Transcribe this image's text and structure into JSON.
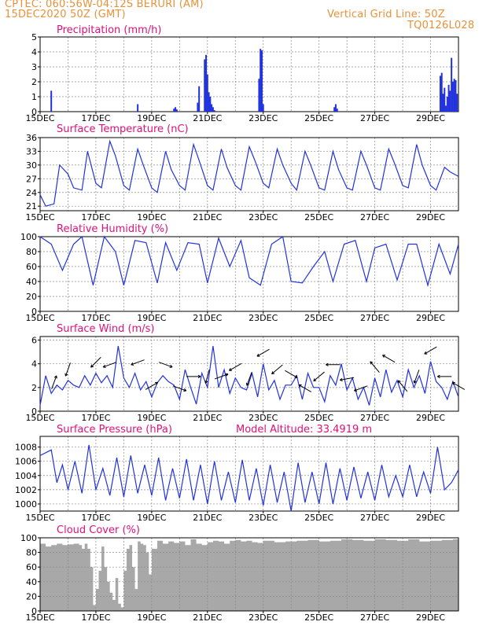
{
  "header": {
    "line1": "CPTEC:   060:56W-04:12S   BERURI (AM)",
    "line2": "15DEC2020 50Z (GMT)",
    "right1": "Vertical Grid Line: 50Z",
    "right2": "TQ0126L028"
  },
  "colors": {
    "header": "#e8913a",
    "title": "#e0107a",
    "series": "#2233dd",
    "cloud": "#a8a8a8",
    "grid": "#888888",
    "frame": "#000000"
  },
  "chart_data": [
    {
      "type": "bar",
      "title": "Precipitation (mm/h)",
      "xlabel": "",
      "ylabel": "",
      "x_ticks": [
        "15DEC",
        "17DEC",
        "19DEC",
        "21DEC",
        "23DEC",
        "25DEC",
        "27DEC",
        "29DEC"
      ],
      "ylim": [
        0,
        5
      ],
      "y_ticks": [
        0,
        1,
        2,
        3,
        4,
        5
      ],
      "grid": true,
      "x_unit": "days since 15DEC 00Z",
      "x": [
        0.4,
        3.5,
        4.8,
        4.85,
        4.9,
        5.65,
        5.7,
        5.9,
        5.95,
        6.0,
        6.05,
        6.1,
        6.15,
        6.2,
        6.25,
        7.85,
        7.9,
        7.95,
        8.0,
        10.55,
        10.6,
        10.65,
        14.35,
        14.4,
        14.45,
        14.5,
        14.55,
        14.6,
        14.65,
        14.7,
        14.75,
        14.8,
        14.85,
        14.9,
        14.95
      ],
      "values": [
        1.4,
        0.5,
        0.2,
        0.3,
        0.15,
        0.6,
        1.7,
        3.5,
        3.8,
        2.5,
        1.3,
        1.0,
        0.5,
        0.3,
        0.1,
        2.2,
        4.2,
        4.1,
        0.5,
        0.3,
        0.5,
        0.2,
        2.4,
        2.6,
        1.2,
        1.6,
        0.4,
        1.0,
        1.8,
        1.4,
        3.6,
        2.0,
        2.2,
        2.1,
        1.2
      ]
    },
    {
      "type": "line",
      "title": "Surface Temperature (nC)",
      "xlabel": "",
      "ylabel": "",
      "x_ticks": [
        "15DEC",
        "17DEC",
        "19DEC",
        "21DEC",
        "23DEC",
        "25DEC",
        "27DEC",
        "29DEC"
      ],
      "ylim": [
        20,
        36
      ],
      "y_ticks": [
        21,
        24,
        27,
        30,
        33,
        36
      ],
      "grid": true,
      "x_unit": "days since 15DEC 00Z",
      "x": [
        0,
        0.2,
        0.5,
        0.7,
        1.0,
        1.2,
        1.5,
        1.7,
        2.0,
        2.2,
        2.5,
        2.7,
        3.0,
        3.2,
        3.5,
        3.7,
        4.0,
        4.2,
        4.5,
        4.7,
        5.0,
        5.2,
        5.5,
        5.7,
        6.0,
        6.2,
        6.5,
        6.7,
        7.0,
        7.2,
        7.5,
        7.7,
        8.0,
        8.2,
        8.5,
        8.7,
        9.0,
        9.2,
        9.5,
        9.7,
        10.0,
        10.2,
        10.5,
        10.7,
        11.0,
        11.2,
        11.5,
        11.7,
        12.0,
        12.2,
        12.5,
        12.7,
        13.0,
        13.2,
        13.5,
        13.7,
        14.0,
        14.2,
        14.5,
        14.7,
        15.0
      ],
      "values": [
        23.5,
        21.0,
        21.5,
        30.0,
        28.0,
        25.0,
        24.5,
        33.0,
        26.0,
        25.0,
        35.2,
        32.0,
        25.5,
        24.5,
        33.5,
        30.0,
        25.0,
        24.0,
        33.0,
        29.0,
        25.5,
        24.5,
        34.5,
        31.0,
        25.5,
        24.5,
        33.5,
        29.5,
        25.5,
        24.5,
        34.0,
        31.0,
        26.0,
        25.0,
        33.5,
        30.0,
        26.0,
        24.5,
        33.0,
        30.0,
        25.0,
        24.5,
        33.0,
        29.0,
        25.0,
        24.5,
        33.0,
        30.0,
        25.0,
        24.5,
        33.5,
        30.5,
        25.5,
        25.0,
        34.5,
        30.0,
        25.5,
        24.5,
        29.5,
        28.5,
        27.5
      ]
    },
    {
      "type": "line",
      "title": "Relative Humidity (%)",
      "xlabel": "",
      "ylabel": "",
      "x_ticks": [
        "15DEC",
        "17DEC",
        "19DEC",
        "21DEC",
        "23DEC",
        "25DEC",
        "27DEC",
        "29DEC"
      ],
      "ylim": [
        0,
        100
      ],
      "y_ticks": [
        0,
        20,
        40,
        60,
        80,
        100
      ],
      "grid": true,
      "x_unit": "days since 15DEC 00Z",
      "x": [
        0,
        0.4,
        0.8,
        1.2,
        1.5,
        1.9,
        2.3,
        2.7,
        3.0,
        3.4,
        3.8,
        4.2,
        4.5,
        4.9,
        5.3,
        5.7,
        6.0,
        6.4,
        6.8,
        7.2,
        7.5,
        7.9,
        8.3,
        8.7,
        9.0,
        9.4,
        9.8,
        10.2,
        10.5,
        10.9,
        11.3,
        11.7,
        12.0,
        12.4,
        12.8,
        13.2,
        13.5,
        13.9,
        14.3,
        14.7,
        15.0
      ],
      "values": [
        100,
        90,
        55,
        90,
        100,
        35,
        100,
        80,
        35,
        95,
        92,
        38,
        92,
        55,
        92,
        90,
        38,
        98,
        60,
        95,
        45,
        35,
        90,
        100,
        40,
        38,
        60,
        80,
        40,
        90,
        95,
        40,
        85,
        90,
        42,
        90,
        90,
        35,
        90,
        50,
        90
      ]
    },
    {
      "type": "line",
      "title": "Surface Wind (m/s)",
      "xlabel": "",
      "ylabel": "",
      "x_ticks": [
        "15DEC",
        "17DEC",
        "19DEC",
        "21DEC",
        "23DEC",
        "25DEC",
        "27DEC",
        "29DEC"
      ],
      "ylim": [
        0,
        6.3
      ],
      "y_ticks": [
        0,
        2,
        4,
        6
      ],
      "grid": true,
      "x_unit": "days since 15DEC 00Z",
      "x": [
        0,
        0.2,
        0.4,
        0.6,
        0.8,
        1.0,
        1.2,
        1.4,
        1.6,
        1.8,
        2.0,
        2.2,
        2.4,
        2.6,
        2.8,
        3.0,
        3.2,
        3.4,
        3.6,
        3.8,
        4.0,
        4.2,
        4.4,
        4.6,
        4.8,
        5.0,
        5.2,
        5.4,
        5.6,
        5.8,
        6.0,
        6.2,
        6.4,
        6.6,
        6.8,
        7.0,
        7.2,
        7.4,
        7.6,
        7.8,
        8.0,
        8.2,
        8.4,
        8.6,
        8.8,
        9.0,
        9.2,
        9.4,
        9.6,
        9.8,
        10.0,
        10.2,
        10.4,
        10.6,
        10.8,
        11.0,
        11.2,
        11.4,
        11.6,
        11.8,
        12.0,
        12.2,
        12.4,
        12.6,
        12.8,
        13.0,
        13.2,
        13.4,
        13.6,
        13.8,
        14.0,
        14.2,
        14.4,
        14.6,
        14.8,
        15.0
      ],
      "values": [
        0.5,
        3.0,
        1.5,
        2.2,
        1.8,
        2.6,
        2.2,
        2.0,
        3.0,
        2.2,
        3.2,
        2.4,
        3.0,
        2.0,
        5.5,
        2.8,
        2.0,
        3.2,
        1.8,
        2.5,
        1.2,
        2.4,
        3.0,
        2.5,
        2.2,
        1.0,
        3.5,
        2.0,
        0.6,
        3.2,
        2.0,
        5.5,
        2.0,
        3.5,
        1.5,
        2.8,
        2.0,
        1.8,
        3.2,
        1.2,
        4.0,
        1.8,
        2.6,
        1.0,
        2.2,
        2.2,
        3.0,
        1.0,
        3.2,
        2.0,
        2.0,
        0.8,
        3.0,
        2.2,
        4.0,
        1.8,
        2.8,
        1.0,
        2.0,
        0.5,
        2.8,
        1.2,
        3.5,
        1.6,
        2.6,
        1.2,
        3.5,
        2.0,
        3.0,
        1.5,
        4.2,
        2.5,
        2.0,
        1.0,
        2.5,
        1.2
      ]
    },
    {
      "type": "line",
      "title": "Surface Pressure (hPa)",
      "annotation": "Model Altitude: 33.4919 m",
      "xlabel": "",
      "ylabel": "",
      "x_ticks": [
        "15DEC",
        "17DEC",
        "19DEC",
        "21DEC",
        "23DEC",
        "25DEC",
        "27DEC",
        "29DEC"
      ],
      "ylim": [
        999,
        1009.5
      ],
      "y_ticks": [
        1000,
        1002,
        1004,
        1006,
        1008
      ],
      "grid": true,
      "x_unit": "days since 15DEC 00Z",
      "x": [
        0,
        0.2,
        0.4,
        0.6,
        0.8,
        1.0,
        1.25,
        1.5,
        1.75,
        2.0,
        2.25,
        2.5,
        2.75,
        3.0,
        3.25,
        3.5,
        3.75,
        4.0,
        4.25,
        4.5,
        4.75,
        5.0,
        5.25,
        5.5,
        5.75,
        6.0,
        6.25,
        6.5,
        6.75,
        7.0,
        7.25,
        7.5,
        7.75,
        8.0,
        8.25,
        8.5,
        8.75,
        9.0,
        9.25,
        9.5,
        9.75,
        10.0,
        10.25,
        10.5,
        10.75,
        11.0,
        11.25,
        11.5,
        11.75,
        12.0,
        12.25,
        12.5,
        12.75,
        13.0,
        13.25,
        13.5,
        13.75,
        14.0,
        14.25,
        14.5,
        14.75,
        15.0
      ],
      "values": [
        1006.8,
        1007.2,
        1007.6,
        1003.0,
        1005.5,
        1002.0,
        1006.0,
        1001.5,
        1008.3,
        1002.0,
        1005.0,
        1001.2,
        1006.5,
        1001.0,
        1006.8,
        1001.5,
        1005.5,
        1001.2,
        1006.5,
        1000.5,
        1005.0,
        1000.8,
        1006.3,
        1000.5,
        1005.5,
        1000.0,
        1006.0,
        1000.5,
        1004.5,
        1000.2,
        1006.2,
        1000.5,
        1005.0,
        999.8,
        1005.5,
        1000.2,
        1004.5,
        999.0,
        1005.8,
        1000.2,
        1004.5,
        1000.0,
        1005.8,
        1000.0,
        1005.0,
        1000.5,
        1005.2,
        1000.8,
        1004.5,
        1000.5,
        1005.5,
        1001.0,
        1004.0,
        1001.0,
        1005.5,
        1001.0,
        1004.5,
        1001.5,
        1008.0,
        1002.0,
        1003.0,
        1004.8
      ]
    },
    {
      "type": "area",
      "title": "Cloud Cover (%)",
      "xlabel": "",
      "ylabel": "",
      "x_ticks": [
        "15DEC",
        "17DEC",
        "19DEC",
        "21DEC",
        "23DEC",
        "25DEC",
        "27DEC",
        "29DEC"
      ],
      "ylim": [
        0,
        100
      ],
      "y_ticks": [
        0,
        20,
        40,
        60,
        80,
        100
      ],
      "grid": true,
      "x_unit": "days since 15DEC 00Z",
      "x": [
        0,
        0.2,
        0.4,
        0.6,
        0.8,
        1.0,
        1.2,
        1.4,
        1.5,
        1.6,
        1.7,
        1.8,
        1.9,
        2.0,
        2.1,
        2.2,
        2.3,
        2.4,
        2.5,
        2.6,
        2.7,
        2.8,
        2.9,
        3.0,
        3.1,
        3.2,
        3.3,
        3.4,
        3.5,
        3.6,
        3.7,
        3.8,
        3.9,
        4.0,
        4.2,
        4.4,
        4.6,
        4.8,
        5.0,
        5.2,
        5.4,
        5.6,
        5.8,
        6.0,
        6.2,
        6.4,
        6.6,
        6.8,
        7.0,
        7.2,
        7.4,
        7.6,
        7.8,
        8.0,
        8.4,
        8.8,
        9.2,
        9.6,
        10.0,
        10.4,
        10.8,
        11.2,
        11.6,
        12.0,
        12.4,
        12.8,
        13.2,
        13.6,
        14.0,
        14.4,
        14.8,
        15.0
      ],
      "values": [
        92,
        88,
        90,
        92,
        90,
        91,
        92,
        90,
        85,
        92,
        85,
        60,
        8,
        30,
        55,
        88,
        60,
        40,
        25,
        15,
        45,
        10,
        5,
        55,
        85,
        90,
        60,
        30,
        95,
        92,
        90,
        80,
        50,
        85,
        96,
        92,
        95,
        93,
        95,
        90,
        98,
        92,
        90,
        94,
        96,
        95,
        92,
        96,
        97,
        95,
        96,
        94,
        93,
        96,
        94,
        95,
        96,
        97,
        95,
        96,
        98,
        97,
        96,
        98,
        97,
        96,
        98,
        95,
        96,
        97,
        98,
        98
      ]
    }
  ],
  "wind_arrows": {
    "x": [
      0.5,
      1.0,
      2.0,
      2.5,
      3.5,
      4.0,
      4.5,
      5.0,
      5.5,
      6.0,
      6.5,
      7.0,
      7.5,
      8.0,
      8.5,
      9.0,
      9.5,
      10.0,
      10.5,
      11.0,
      11.5,
      12.0,
      12.5,
      13.0,
      13.5,
      14.0,
      14.5,
      15.0
    ],
    "direction_deg": [
      20,
      200,
      225,
      250,
      250,
      60,
      110,
      110,
      90,
      195,
      70,
      240,
      200,
      240,
      230,
      120,
      300,
      230,
      270,
      260,
      250,
      320,
      300,
      320,
      200,
      240,
      270,
      300
    ]
  }
}
